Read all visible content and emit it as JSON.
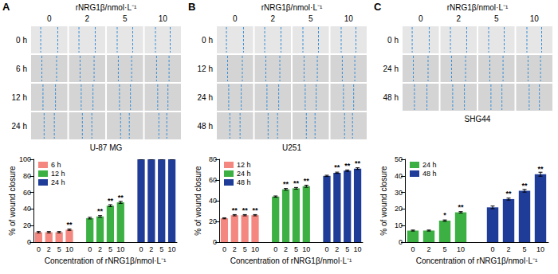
{
  "figure": {
    "panels": [
      {
        "label": "A",
        "header": "rNRG1β/nmol·L⁻¹",
        "columns": [
          "0",
          "2",
          "5",
          "10"
        ],
        "rows": [
          "0 h",
          "6 h",
          "12 h",
          "24 h"
        ]
      },
      {
        "label": "B",
        "header": "rNRG1β/nmol·L⁻¹",
        "columns": [
          "0",
          "2",
          "5",
          "10"
        ],
        "rows": [
          "0 h",
          "12 h",
          "24 h",
          "48 h"
        ]
      },
      {
        "label": "C",
        "header": "rNRG1β/nmol·L⁻¹",
        "columns": [
          "0",
          "2",
          "5",
          "10"
        ],
        "rows": [
          "0 h",
          "24 h",
          "48 h"
        ]
      }
    ]
  },
  "chart_data": [
    {
      "type": "bar",
      "title": "U-87 MG",
      "x_label": "Concentration of rNRG1β/nmol·L⁻¹",
      "y_label": "% of wound closure",
      "categories": [
        "0",
        "2",
        "5",
        "10",
        null,
        "0",
        "2",
        "5",
        "10",
        null,
        "0",
        "2",
        "5",
        "10"
      ],
      "series": [
        {
          "name": "6 h",
          "color": "#f4877f",
          "values": [
            12,
            12,
            12,
            15,
            null,
            null,
            null,
            null,
            null,
            null,
            null,
            null,
            null,
            null
          ],
          "errors": [
            0.8,
            0.8,
            0.8,
            0.8,
            null,
            null,
            null,
            null,
            null,
            null,
            null,
            null,
            null,
            null
          ],
          "significance": [
            null,
            null,
            null,
            "**",
            null,
            null,
            null,
            null,
            null,
            null,
            null,
            null,
            null,
            null
          ]
        },
        {
          "name": "12 h",
          "color": "#3cb043",
          "values": [
            null,
            null,
            null,
            null,
            null,
            29,
            31,
            44,
            48,
            null,
            null,
            null,
            null,
            null
          ],
          "errors": [
            null,
            null,
            null,
            null,
            null,
            1,
            1,
            1.2,
            1.2,
            null,
            null,
            null,
            null,
            null
          ],
          "significance": [
            null,
            null,
            null,
            null,
            null,
            null,
            "**",
            "**",
            "**",
            null,
            null,
            null,
            null,
            null
          ]
        },
        {
          "name": "24 h",
          "color": "#1f3c98",
          "values": [
            null,
            null,
            null,
            null,
            null,
            null,
            null,
            null,
            null,
            null,
            100,
            100,
            100,
            100
          ],
          "errors": [
            null,
            null,
            null,
            null,
            null,
            null,
            null,
            null,
            null,
            null,
            0,
            0,
            0,
            0
          ],
          "significance": [
            null,
            null,
            null,
            null,
            null,
            null,
            null,
            null,
            null,
            null,
            null,
            null,
            null,
            null
          ]
        }
      ],
      "ylim": [
        0,
        100
      ],
      "yticks": [
        0,
        20,
        40,
        60,
        80,
        100
      ],
      "legend": "upper left",
      "grid": false
    },
    {
      "type": "bar",
      "title": "U251",
      "x_label": "Concentration of rNRG1β/nmol·L⁻¹",
      "y_label": "% of wound closure",
      "categories": [
        "0",
        "2",
        "5",
        "10",
        null,
        "0",
        "2",
        "5",
        "10",
        null,
        "0",
        "2",
        "5",
        "10"
      ],
      "series": [
        {
          "name": "12 h",
          "color": "#f4877f",
          "values": [
            23,
            26,
            26,
            26,
            null,
            null,
            null,
            null,
            null,
            null,
            null,
            null,
            null,
            null
          ],
          "errors": [
            0.5,
            0.6,
            0.6,
            0.6,
            null,
            null,
            null,
            null,
            null,
            null,
            null,
            null,
            null,
            null
          ],
          "significance": [
            null,
            "**",
            "**",
            "**",
            null,
            null,
            null,
            null,
            null,
            null,
            null,
            null,
            null,
            null
          ]
        },
        {
          "name": "24 h",
          "color": "#3cb043",
          "values": [
            null,
            null,
            null,
            null,
            null,
            44,
            51,
            52,
            54,
            null,
            null,
            null,
            null,
            null
          ],
          "errors": [
            null,
            null,
            null,
            null,
            null,
            0.6,
            0.8,
            0.8,
            1,
            null,
            null,
            null,
            null,
            null
          ],
          "significance": [
            null,
            null,
            null,
            null,
            null,
            null,
            "**",
            "**",
            "**",
            null,
            null,
            null,
            null,
            null
          ]
        },
        {
          "name": "48 h",
          "color": "#1f3c98",
          "values": [
            null,
            null,
            null,
            null,
            null,
            null,
            null,
            null,
            null,
            null,
            64,
            67,
            69,
            71
          ],
          "errors": [
            null,
            null,
            null,
            null,
            null,
            null,
            null,
            null,
            null,
            null,
            0.6,
            0.6,
            0.7,
            0.8
          ],
          "significance": [
            null,
            null,
            null,
            null,
            null,
            null,
            null,
            null,
            null,
            null,
            null,
            "**",
            "**",
            "**"
          ]
        }
      ],
      "ylim": [
        0,
        80
      ],
      "yticks": [
        0,
        20,
        40,
        60,
        80
      ],
      "legend": "upper left",
      "grid": false
    },
    {
      "type": "bar",
      "title": "SHG44",
      "x_label": "Concentration of rNRG1β/nmol·L⁻¹",
      "y_label": "% of wound closure",
      "categories": [
        "0",
        "2",
        "5",
        "10",
        null,
        "0",
        "2",
        "5",
        "10"
      ],
      "series": [
        {
          "name": "24 h",
          "color": "#3cb043",
          "values": [
            7,
            7,
            13,
            18,
            null,
            null,
            null,
            null,
            null
          ],
          "errors": [
            0.3,
            0.3,
            0.4,
            0.4,
            null,
            null,
            null,
            null,
            null
          ],
          "significance": [
            null,
            null,
            "*",
            "**",
            null,
            null,
            null,
            null,
            null
          ]
        },
        {
          "name": "48 h",
          "color": "#1f3c98",
          "values": [
            null,
            null,
            null,
            null,
            null,
            21,
            26,
            31,
            41
          ],
          "errors": [
            null,
            null,
            null,
            null,
            null,
            0.8,
            0.6,
            0.8,
            1.2
          ],
          "significance": [
            null,
            null,
            null,
            null,
            null,
            null,
            "**",
            "**",
            "**"
          ]
        }
      ],
      "ylim": [
        0,
        50
      ],
      "yticks": [
        0,
        10,
        20,
        30,
        40,
        50
      ],
      "legend": "upper left",
      "grid": false
    }
  ]
}
